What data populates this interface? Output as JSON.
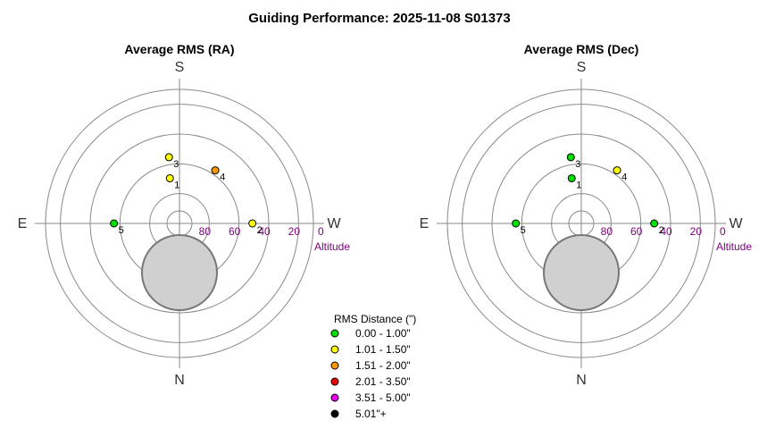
{
  "title": "Guiding Performance: 2025-11-08 S01373",
  "directions": {
    "top": "S",
    "bottom": "N",
    "left": "E",
    "right": "W"
  },
  "altitude_label": "Altitude",
  "altitude_ticks": [
    80,
    60,
    40,
    20,
    0
  ],
  "colors": {
    "0.00 - 1.00\"": "#00e000",
    "1.01 - 1.50\"": "#ffff00",
    "1.51 - 2.00\"": "#ff9900",
    "2.01 - 3.50\"": "#ee0000",
    "3.51 - 5.00\"": "#ee00ee",
    "5.01\"+": "#000000"
  },
  "legend": {
    "title": "RMS Distance (\")",
    "items": [
      {
        "label": "0.00 - 1.00\"",
        "color": "#00e000"
      },
      {
        "label": "1.01 - 1.50\"",
        "color": "#ffff00"
      },
      {
        "label": "1.51 - 2.00\"",
        "color": "#ff9900"
      },
      {
        "label": "2.01 - 3.50\"",
        "color": "#ee0000"
      },
      {
        "label": "3.51 - 5.00\"",
        "color": "#ee00ee"
      },
      {
        "label": "5.01\"+",
        "color": "#000000"
      }
    ]
  },
  "chart_data": [
    {
      "type": "scatter",
      "projection": "polar-altaz",
      "title": "Average RMS (RA)",
      "r_axis": "Altitude",
      "r_range": [
        90,
        0
      ],
      "points": [
        {
          "label": "1",
          "azimuth": 12,
          "altitude": 59,
          "category": "1.01 - 1.50\""
        },
        {
          "label": "2",
          "azimuth": 270,
          "altitude": 41,
          "category": "1.01 - 1.50\""
        },
        {
          "label": "3",
          "azimuth": 9,
          "altitude": 45,
          "category": "1.01 - 1.50\""
        },
        {
          "label": "4",
          "azimuth": 326,
          "altitude": 47,
          "category": "1.51 - 2.00\""
        },
        {
          "label": "5",
          "azimuth": 90,
          "altitude": 46,
          "category": "0.00 - 1.00\""
        }
      ]
    },
    {
      "type": "scatter",
      "projection": "polar-altaz",
      "title": "Average RMS (Dec)",
      "r_axis": "Altitude",
      "r_range": [
        90,
        0
      ],
      "points": [
        {
          "label": "1",
          "azimuth": 12,
          "altitude": 59,
          "category": "0.00 - 1.00\""
        },
        {
          "label": "2",
          "azimuth": 270,
          "altitude": 41,
          "category": "0.00 - 1.00\""
        },
        {
          "label": "3",
          "azimuth": 9,
          "altitude": 45,
          "category": "0.00 - 1.00\""
        },
        {
          "label": "4",
          "azimuth": 326,
          "altitude": 47,
          "category": "1.01 - 1.50\""
        },
        {
          "label": "5",
          "azimuth": 90,
          "altitude": 46,
          "category": "0.00 - 1.00\""
        }
      ]
    }
  ]
}
